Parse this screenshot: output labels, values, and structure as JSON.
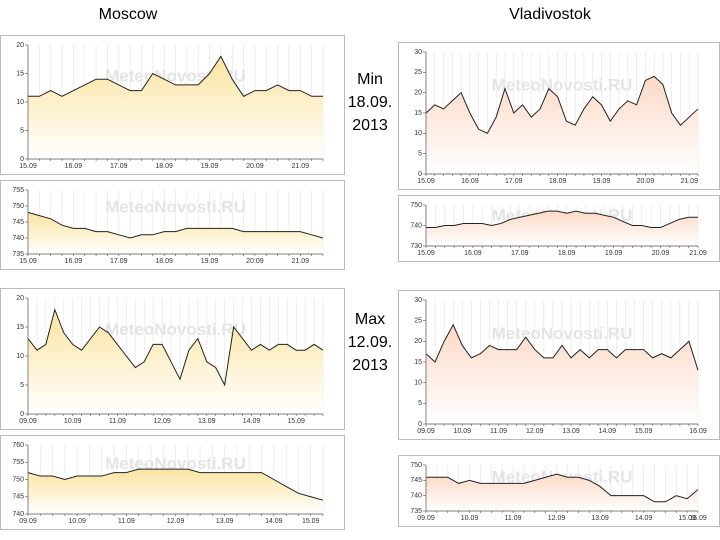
{
  "headers": {
    "left": "Moscow",
    "right": "Vladivostok"
  },
  "notes": [
    {
      "lines": [
        "Min",
        "18.09.",
        "2013"
      ]
    },
    {
      "lines": [
        "Max",
        "12.09.",
        "2013"
      ]
    }
  ],
  "watermark": "MeteoNovosti.RU",
  "chart_data": [
    {
      "type": "area",
      "color": "#fbe3a0",
      "categories": [
        "15.09",
        null,
        null,
        null,
        "16.09",
        null,
        null,
        null,
        "17.09",
        null,
        null,
        null,
        "18.09",
        null,
        null,
        null,
        "19.09",
        null,
        null,
        null,
        "20.09",
        null,
        null,
        null,
        "21.09",
        null,
        null
      ],
      "values": [
        11,
        11,
        12,
        11,
        12,
        13,
        14,
        14,
        13,
        12,
        12,
        15,
        14,
        13,
        13,
        13,
        15,
        18,
        14,
        11,
        12,
        12,
        13,
        12,
        12,
        11,
        11
      ],
      "ylim": [
        0,
        20
      ],
      "yticks": [
        0,
        5,
        10,
        15,
        20
      ]
    },
    {
      "type": "area",
      "color": "#fbe3a0",
      "categories": [
        "15.09",
        null,
        null,
        null,
        "16.09",
        null,
        null,
        null,
        "17.09",
        null,
        null,
        null,
        "18.09",
        null,
        null,
        null,
        "19.09",
        null,
        null,
        null,
        "20.09",
        null,
        null,
        null,
        "21.09",
        null,
        null
      ],
      "values": [
        748,
        747,
        746,
        744,
        743,
        743,
        742,
        742,
        741,
        740,
        741,
        741,
        742,
        742,
        743,
        743,
        743,
        743,
        743,
        742,
        742,
        742,
        742,
        742,
        742,
        741,
        740
      ],
      "ylim": [
        735,
        755
      ],
      "yticks": [
        735,
        740,
        745,
        750,
        755
      ]
    },
    {
      "type": "area",
      "color": "#fcd9c6",
      "categories": [
        "15.09",
        null,
        null,
        null,
        null,
        "16.09",
        null,
        null,
        null,
        null,
        "17.09",
        null,
        null,
        null,
        null,
        "18.09",
        null,
        null,
        null,
        null,
        "19.09",
        null,
        null,
        null,
        null,
        "20.09",
        null,
        null,
        null,
        null,
        "21.09",
        null
      ],
      "values": [
        15,
        17,
        16,
        18,
        20,
        15,
        11,
        10,
        14,
        21,
        15,
        17,
        14,
        16,
        21,
        19,
        13,
        12,
        16,
        19,
        17,
        13,
        16,
        18,
        17,
        23,
        24,
        22,
        15,
        12,
        14,
        16
      ],
      "ylim": [
        0,
        30
      ],
      "yticks": [
        0,
        5,
        10,
        15,
        20,
        25,
        30
      ]
    },
    {
      "type": "area",
      "color": "#fcd9c6",
      "categories": [
        "15.09",
        null,
        null,
        null,
        null,
        "16.09",
        null,
        null,
        null,
        null,
        "17.09",
        null,
        null,
        null,
        null,
        "18.09",
        null,
        null,
        null,
        null,
        "19.09",
        null,
        null,
        null,
        null,
        "20.09",
        null,
        null,
        null,
        "21.09"
      ],
      "values": [
        739,
        739,
        740,
        740,
        741,
        741,
        741,
        740,
        741,
        743,
        744,
        745,
        746,
        747,
        747,
        746,
        747,
        746,
        746,
        745,
        744,
        742,
        740,
        740,
        739,
        739,
        741,
        743,
        744,
        744
      ],
      "ylim": [
        730,
        750
      ],
      "yticks": [
        730,
        740,
        750
      ]
    },
    {
      "type": "area",
      "color": "#fbe3a0",
      "categories": [
        "09.09",
        null,
        null,
        null,
        null,
        "10.09",
        null,
        null,
        null,
        null,
        "11.09",
        null,
        null,
        null,
        null,
        "12.09",
        null,
        null,
        null,
        null,
        "13.09",
        null,
        null,
        null,
        null,
        "14.09",
        null,
        null,
        null,
        null,
        "15.09",
        null,
        null,
        null
      ],
      "values": [
        13,
        11,
        12,
        18,
        14,
        12,
        11,
        13,
        15,
        14,
        12,
        10,
        8,
        9,
        12,
        12,
        9,
        6,
        11,
        13,
        9,
        8,
        5,
        15,
        13,
        11,
        12,
        11,
        12,
        12,
        11,
        11,
        12,
        11
      ],
      "ylim": [
        0,
        20
      ],
      "yticks": [
        0,
        5,
        10,
        15,
        20
      ]
    },
    {
      "type": "area",
      "color": "#fbe3a0",
      "categories": [
        "09.09",
        null,
        null,
        null,
        "10.09",
        null,
        null,
        null,
        "11.09",
        null,
        null,
        null,
        "12.09",
        null,
        null,
        null,
        "13.09",
        null,
        null,
        null,
        "14.09",
        null,
        null,
        "15.09",
        null
      ],
      "values": [
        752,
        751,
        751,
        750,
        751,
        751,
        751,
        752,
        752,
        753,
        753,
        753,
        753,
        753,
        752,
        752,
        752,
        752,
        752,
        752,
        750,
        748,
        746,
        745,
        744
      ],
      "ylim": [
        740,
        760
      ],
      "yticks": [
        740,
        745,
        750,
        755,
        760
      ]
    },
    {
      "type": "area",
      "color": "#fcd9c6",
      "categories": [
        "09.09",
        null,
        null,
        null,
        "10.09",
        null,
        null,
        null,
        "11.09",
        null,
        null,
        null,
        "12.09",
        null,
        null,
        null,
        "13.09",
        null,
        null,
        null,
        "14.09",
        null,
        null,
        null,
        "15.09",
        null,
        null,
        null,
        null,
        null,
        "16.09"
      ],
      "values": [
        17,
        15,
        20,
        24,
        19,
        16,
        17,
        19,
        18,
        18,
        18,
        21,
        18,
        16,
        16,
        19,
        16,
        18,
        16,
        18,
        18,
        16,
        18,
        18,
        18,
        16,
        17,
        16,
        18,
        20,
        13
      ],
      "ylim": [
        0,
        30
      ],
      "yticks": [
        0,
        5,
        10,
        15,
        20,
        25,
        30
      ]
    },
    {
      "type": "area",
      "color": "#fcd9c6",
      "categories": [
        "09.09",
        null,
        null,
        null,
        "10.09",
        null,
        null,
        null,
        "11.09",
        null,
        null,
        null,
        "12.09",
        null,
        null,
        null,
        "13.09",
        null,
        null,
        null,
        "14.09",
        null,
        null,
        null,
        "15.09",
        "16.09"
      ],
      "values": [
        746,
        746,
        746,
        744,
        745,
        744,
        744,
        744,
        744,
        744,
        745,
        746,
        747,
        746,
        746,
        745,
        743,
        740,
        740,
        740,
        740,
        738,
        738,
        740,
        739,
        742
      ],
      "ylim": [
        735,
        750
      ],
      "yticks": [
        735,
        740,
        745,
        750
      ]
    }
  ]
}
